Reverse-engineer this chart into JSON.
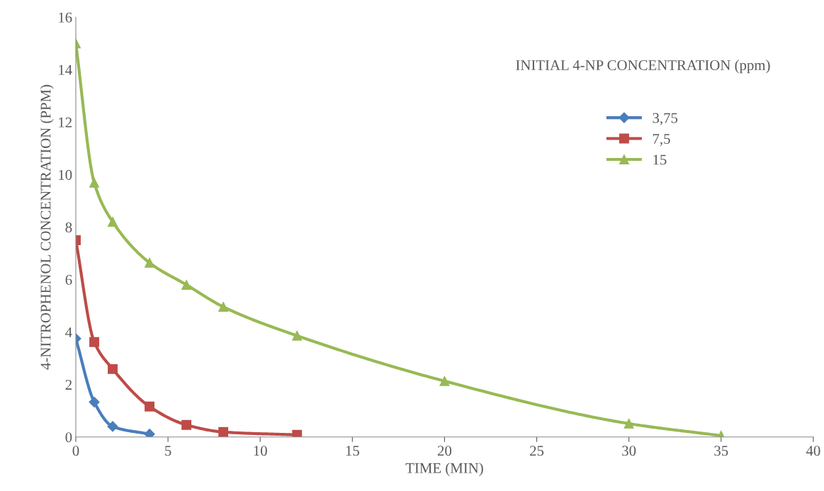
{
  "chart_data": {
    "type": "line",
    "xlabel": "TIME (MIN)",
    "ylabel": "4-NITROPHENOL CONCENTRATION (PPM)",
    "legend_title": "INITIAL 4-NP CONCENTRATION (ppm)",
    "legend": "right",
    "grid": false,
    "line_style": "solid",
    "xlim": [
      0,
      40
    ],
    "xticks": [
      0,
      5,
      10,
      15,
      20,
      25,
      30,
      35,
      40
    ],
    "ylim": [
      0,
      16
    ],
    "yticks": [
      0,
      2,
      4,
      6,
      8,
      10,
      12,
      14,
      16
    ],
    "series": [
      {
        "name": "3,75",
        "color": "#4a7ebb",
        "marker": "diamond",
        "x": [
          0,
          1,
          2,
          4
        ],
        "values": [
          3.75,
          1.33,
          0.4,
          0.11
        ]
      },
      {
        "name": "7,5",
        "color": "#be4b48",
        "marker": "square",
        "x": [
          0,
          1,
          2,
          4,
          6,
          8,
          12
        ],
        "values": [
          7.5,
          3.62,
          2.59,
          1.16,
          0.46,
          0.19,
          0.08
        ]
      },
      {
        "name": "15",
        "color": "#98b954",
        "marker": "triangle",
        "x": [
          0,
          1,
          2,
          4,
          6,
          8,
          12,
          20,
          30,
          35
        ],
        "values": [
          15,
          9.69,
          8.2,
          6.64,
          5.8,
          4.96,
          3.86,
          2.13,
          0.51,
          0.05
        ]
      }
    ]
  }
}
